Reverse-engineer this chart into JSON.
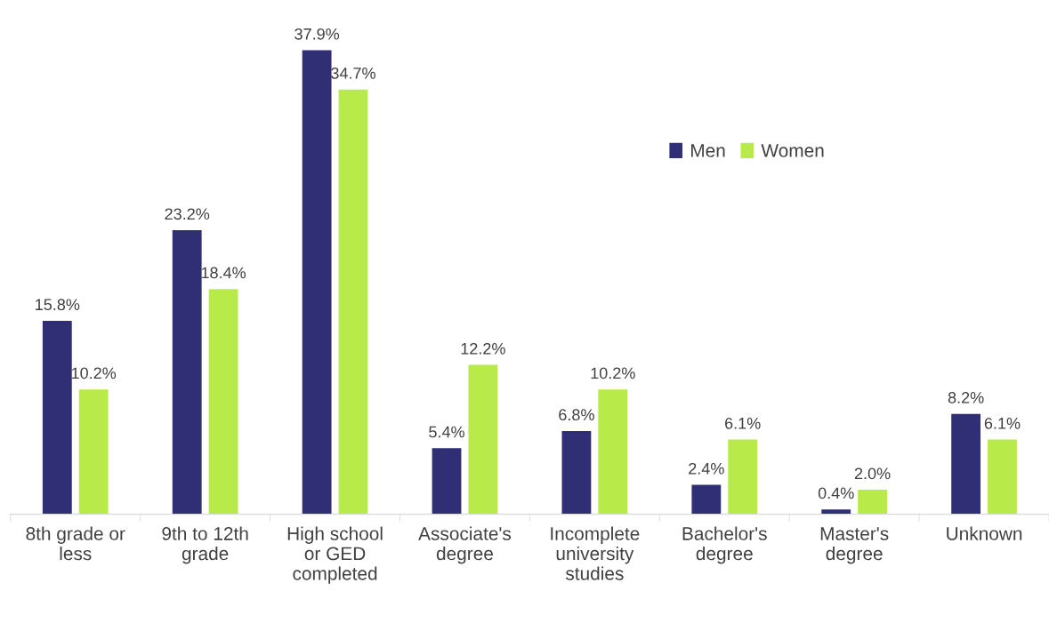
{
  "chart_data": {
    "type": "bar",
    "categories": [
      "8th grade or\nless",
      "9th to 12th\ngrade",
      "High school\nor GED\ncompleted",
      "Associate's\ndegree",
      "Incomplete\nuniversity\nstudies",
      "Bachelor's\ndegree",
      "Master's\ndegree",
      "Unknown"
    ],
    "series": [
      {
        "name": "Men",
        "color": "#302f75",
        "values": [
          15.8,
          23.2,
          37.9,
          5.4,
          6.8,
          2.4,
          0.4,
          8.2
        ],
        "value_labels": [
          "15.8%",
          "23.2%",
          "37.9%",
          "5.4%",
          "6.8%",
          "2.4%",
          "0.4%",
          "8.2%"
        ]
      },
      {
        "name": "Women",
        "color": "#b8ea4a",
        "values": [
          10.2,
          18.4,
          34.7,
          12.2,
          10.2,
          6.1,
          2.0,
          6.1
        ],
        "value_labels": [
          "10.2%",
          "18.4%",
          "34.7%",
          "12.2%",
          "10.2%",
          "6.1%",
          "2.0%",
          "6.1%"
        ]
      }
    ],
    "tick_labels": "x",
    "legend": "top right",
    "grid": false
  }
}
